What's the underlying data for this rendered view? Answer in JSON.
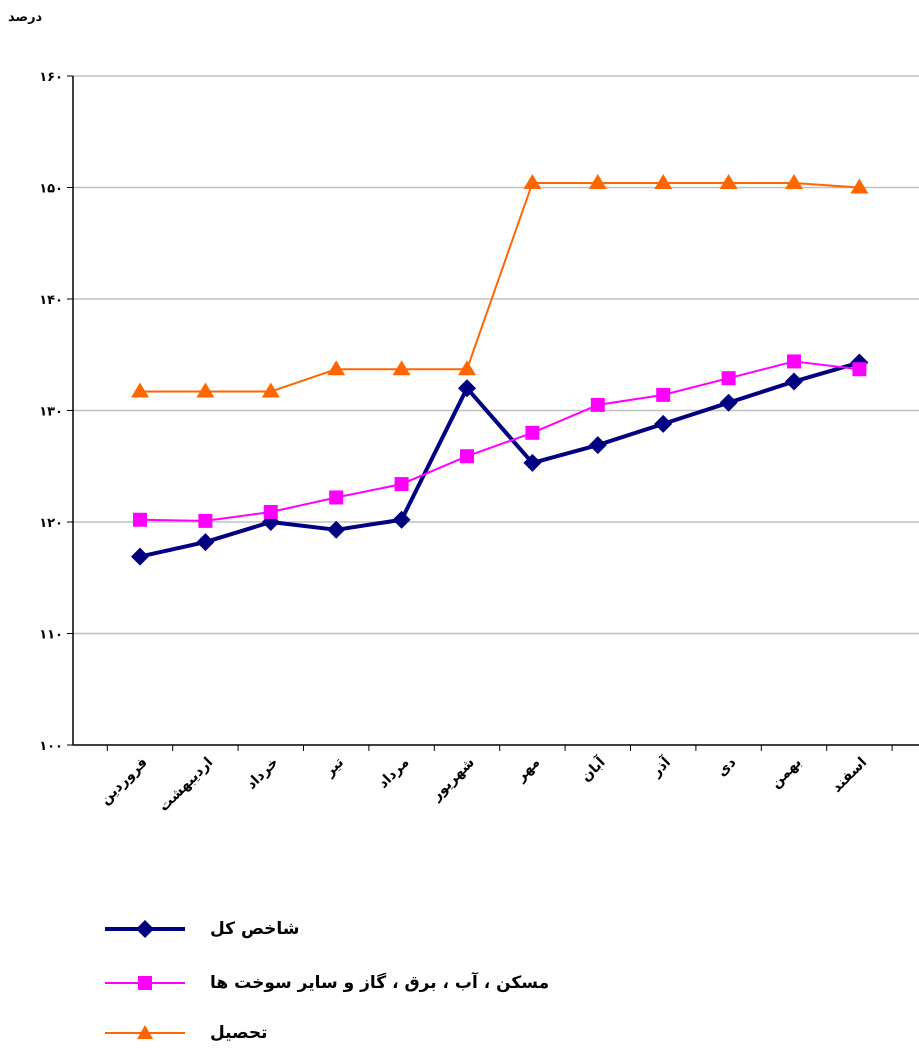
{
  "chart_data": {
    "type": "line",
    "title": "",
    "ylabel": "درصد",
    "xlabel": "",
    "ylim": [
      100,
      160
    ],
    "yticks": [
      "۱۰۰",
      "۱۱۰",
      "۱۲۰",
      "۱۳۰",
      "۱۴۰",
      "۱۵۰",
      "۱۶۰"
    ],
    "categories": [
      "فروردین",
      "اردیبهشت",
      "خرداد",
      "تیر",
      "مرداد",
      "شهریور",
      "مهر",
      "آبان",
      "آذر",
      "دی",
      "بهمن",
      "اسفند"
    ],
    "grid": true,
    "legend_position": "bottom",
    "series": [
      {
        "name": "شاخص کل",
        "color": "#000080",
        "marker": "diamond",
        "values": [
          116.9,
          118.2,
          120.0,
          119.3,
          120.2,
          132.0,
          125.3,
          126.9,
          128.8,
          130.7,
          132.6,
          134.3
        ]
      },
      {
        "name": "مسکن ، آب ، برق ، گاز و سایر سوخت ها",
        "color": "#FF00FF",
        "marker": "square",
        "values": [
          120.2,
          120.1,
          120.9,
          122.2,
          123.4,
          125.9,
          128.0,
          130.5,
          131.4,
          132.9,
          134.4,
          133.7
        ]
      },
      {
        "name": "تحصیل",
        "color": "#FF6600",
        "marker": "triangle",
        "values": [
          131.7,
          131.7,
          131.7,
          133.7,
          133.7,
          133.7,
          150.4,
          150.4,
          150.4,
          150.4,
          150.4,
          150.0
        ]
      }
    ]
  }
}
